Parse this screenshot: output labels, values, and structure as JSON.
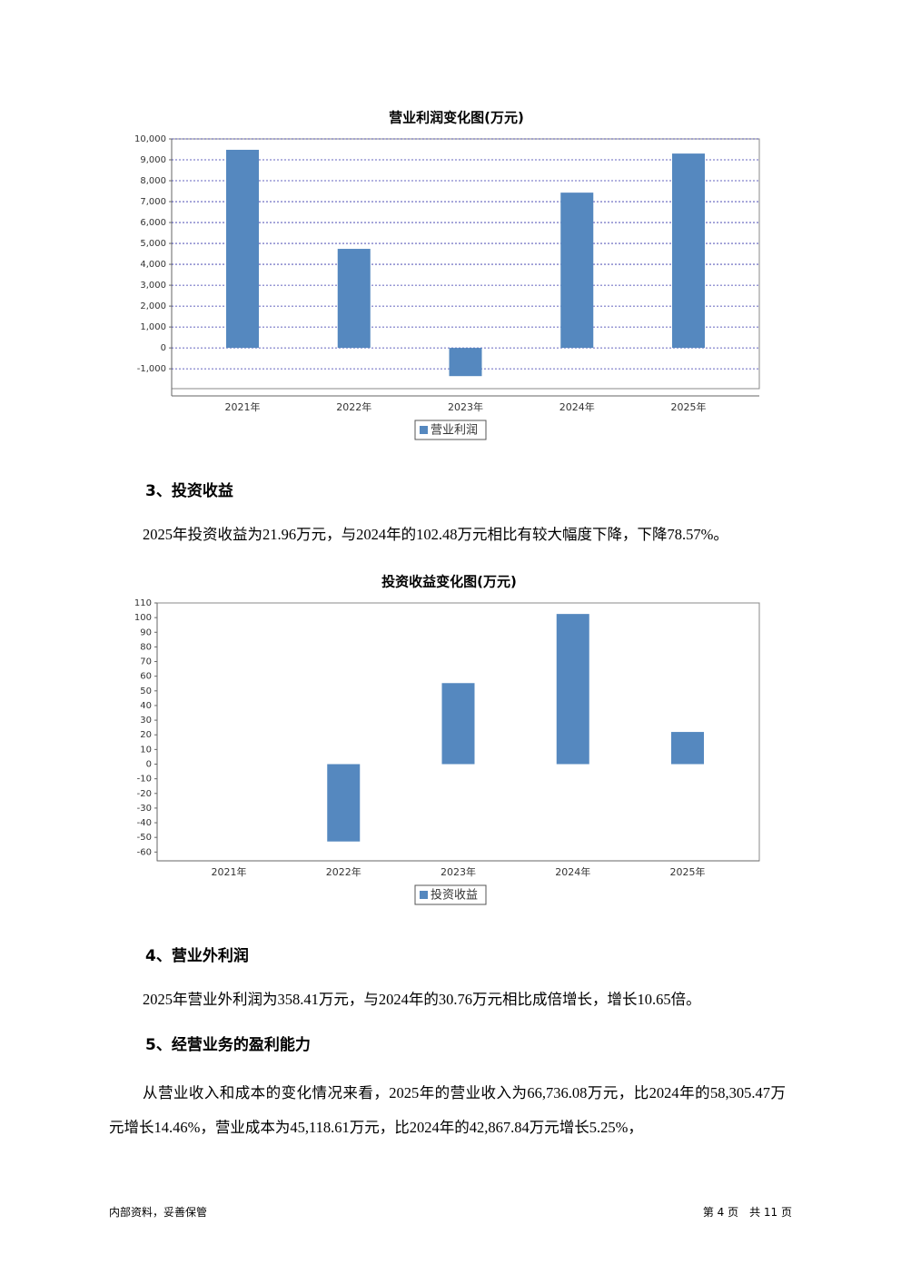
{
  "chart_data": [
    {
      "type": "bar",
      "title": "营业利润变化图(万元)",
      "categories": [
        "2021年",
        "2022年",
        "2023年",
        "2024年",
        "2025年"
      ],
      "series": [
        {
          "name": "营业利润",
          "color": "#5588bf",
          "values": [
            9480,
            4740,
            -1350,
            7430,
            9300
          ]
        }
      ],
      "ylim": [
        -1950,
        10000
      ],
      "yticks": [
        {
          "value": -1000,
          "label": "-1,000"
        },
        0,
        {
          "value": 1000,
          "label": "1,000"
        },
        {
          "value": 2000,
          "label": "2,000"
        },
        {
          "value": 3000,
          "label": "3,000"
        },
        {
          "value": 4000,
          "label": "4,000"
        },
        {
          "value": 5000,
          "label": "5,000"
        },
        {
          "value": 6000,
          "label": "6,000"
        },
        {
          "value": 7000,
          "label": "7,000"
        },
        {
          "value": 8000,
          "label": "8,000"
        },
        {
          "value": 9000,
          "label": "9,000"
        },
        {
          "value": 10000,
          "label": "10,000"
        }
      ],
      "grid": true
    },
    {
      "type": "bar",
      "title": "投资收益变化图(万元)",
      "categories": [
        "2021年",
        "2022年",
        "2023年",
        "2024年",
        "2025年"
      ],
      "series": [
        {
          "name": "投资收益",
          "color": "#5588bf",
          "values": [
            null,
            -52.8,
            55.3,
            102.48,
            21.96
          ]
        }
      ],
      "ylim": [
        -66,
        110
      ],
      "yticks": [
        -60,
        -50,
        -40,
        -30,
        -20,
        -10,
        0,
        10,
        20,
        30,
        40,
        50,
        60,
        70,
        80,
        90,
        100,
        110
      ],
      "grid": false
    }
  ],
  "sections": [
    {
      "heading": "3、投资收益",
      "paragraph": "2025年投资收益为21.96万元，与2024年的102.48万元相比有较大幅度下降，下降78.57%。"
    },
    {
      "heading": "4、营业外利润",
      "paragraph": "2025年营业外利润为358.41万元，与2024年的30.76万元相比成倍增长，增长10.65倍。"
    },
    {
      "heading": "5、经营业务的盈利能力",
      "paragraph": "从营业收入和成本的变化情况来看，2025年的营业收入为66,736.08万元，比2024年的58,305.47万元增长14.46%，营业成本为45,118.61万元，比2024年的42,867.84万元增长5.25%，"
    }
  ],
  "footer": {
    "left": "内部资料，妥善保管",
    "right": "第 4 页　共 11 页"
  }
}
